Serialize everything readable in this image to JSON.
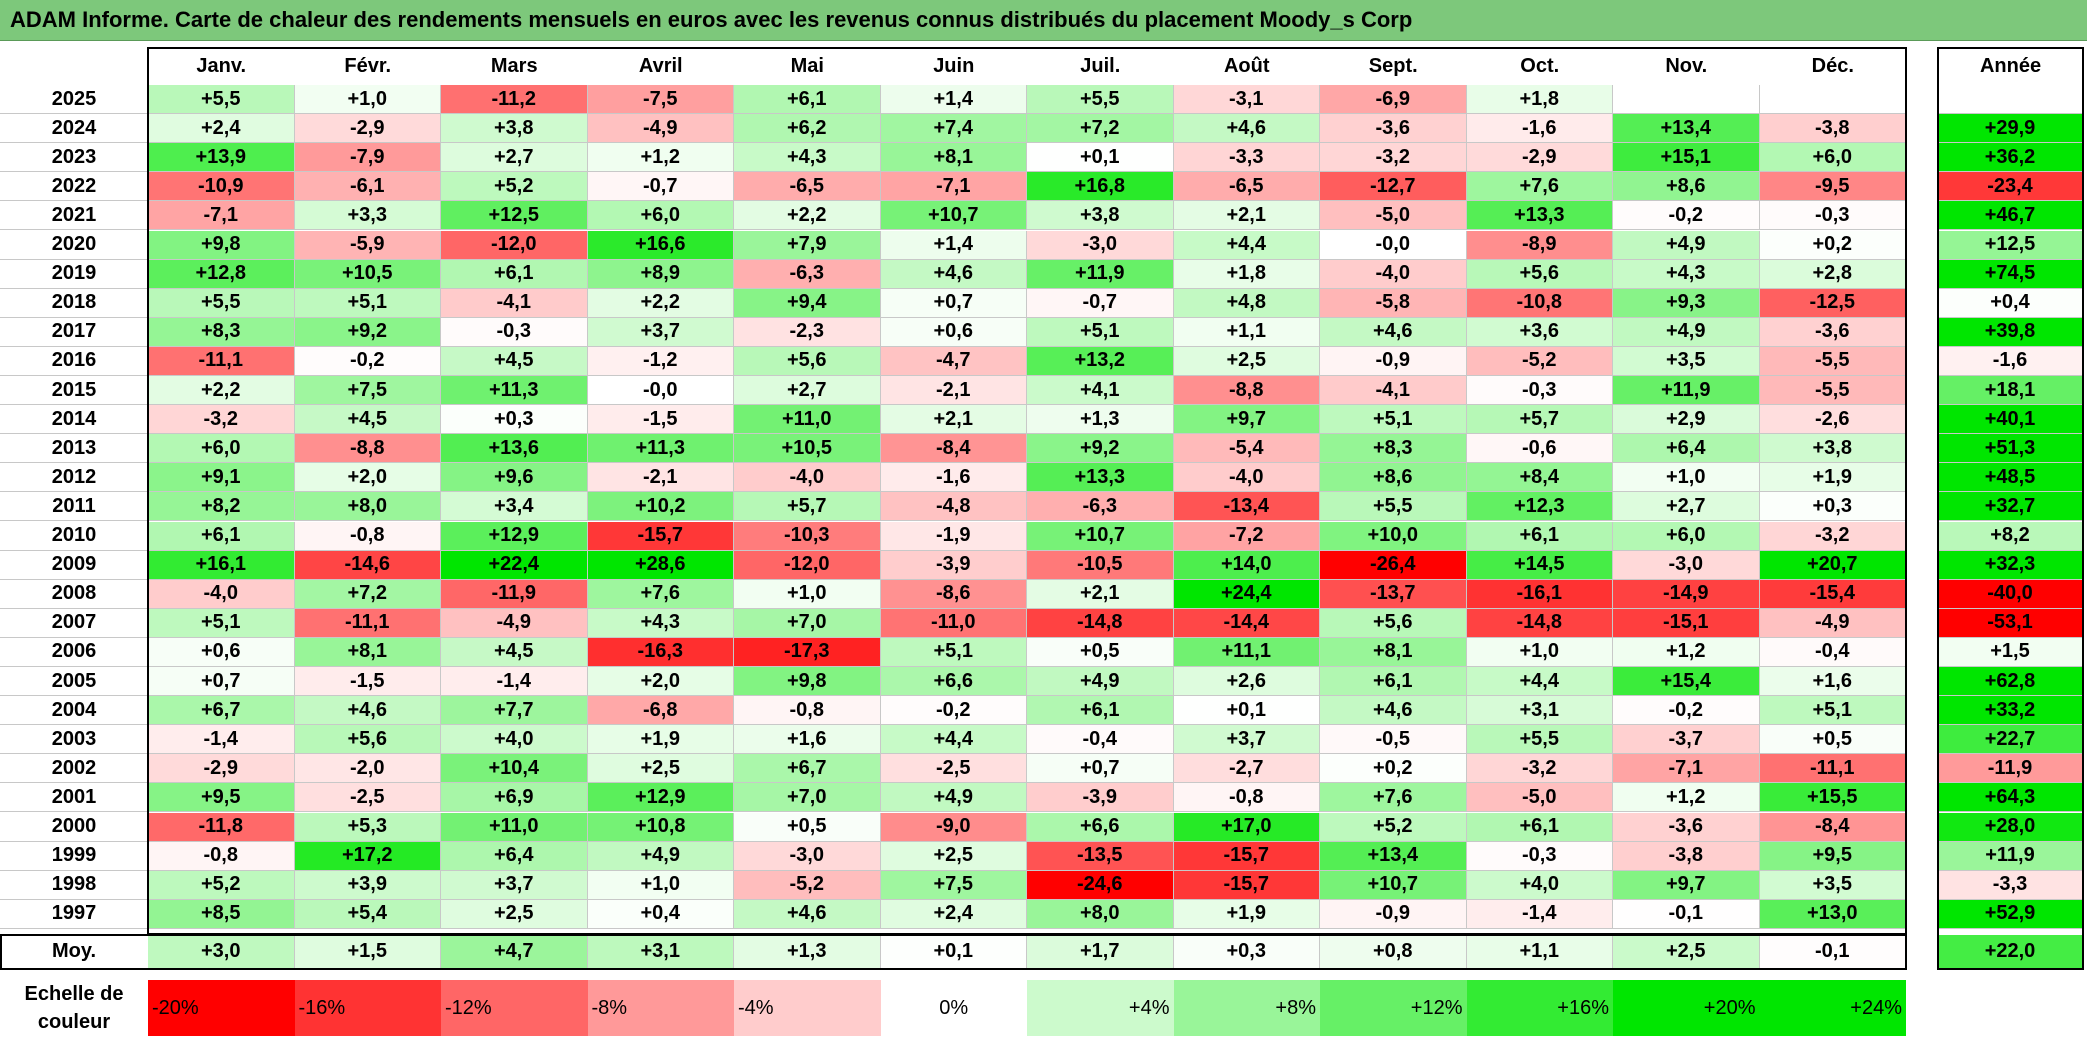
{
  "title": "ADAM Informe. Carte de chaleur des rendements mensuels en euros avec les revenus connus distribués du placement Moody_s Corp",
  "chart_data": {
    "type": "heatmap",
    "title": "ADAM Informe. Carte de chaleur des rendements mensuels en euros avec les revenus connus distribués du placement Moody_s Corp",
    "months": [
      "Janv.",
      "Févr.",
      "Mars",
      "Avril",
      "Mai",
      "Juin",
      "Juil.",
      "Août",
      "Sept.",
      "Oct.",
      "Nov.",
      "Déc."
    ],
    "year_header": "Année",
    "rows": [
      {
        "year": "2025",
        "values": [
          "+5,5",
          "+1,0",
          "-11,2",
          "-7,5",
          "+6,1",
          "+1,4",
          "+5,5",
          "-3,1",
          "-6,9",
          "+1,8",
          "",
          ""
        ],
        "annual": ""
      },
      {
        "year": "2024",
        "values": [
          "+2,4",
          "-2,9",
          "+3,8",
          "-4,9",
          "+6,2",
          "+7,4",
          "+7,2",
          "+4,6",
          "-3,6",
          "-1,6",
          "+13,4",
          "-3,8"
        ],
        "annual": "+29,9"
      },
      {
        "year": "2023",
        "values": [
          "+13,9",
          "-7,9",
          "+2,7",
          "+1,2",
          "+4,3",
          "+8,1",
          "+0,1",
          "-3,3",
          "-3,2",
          "-2,9",
          "+15,1",
          "+6,0"
        ],
        "annual": "+36,2"
      },
      {
        "year": "2022",
        "values": [
          "-10,9",
          "-6,1",
          "+5,2",
          "-0,7",
          "-6,5",
          "-7,1",
          "+16,8",
          "-6,5",
          "-12,7",
          "+7,6",
          "+8,6",
          "-9,5"
        ],
        "annual": "-23,4"
      },
      {
        "year": "2021",
        "values": [
          "-7,1",
          "+3,3",
          "+12,5",
          "+6,0",
          "+2,2",
          "+10,7",
          "+3,8",
          "+2,1",
          "-5,0",
          "+13,3",
          "-0,2",
          "-0,3"
        ],
        "annual": "+46,7"
      },
      {
        "year": "2020",
        "values": [
          "+9,8",
          "-5,9",
          "-12,0",
          "+16,6",
          "+7,9",
          "+1,4",
          "-3,0",
          "+4,4",
          "-0,0",
          "-8,9",
          "+4,9",
          "+0,2"
        ],
        "annual": "+12,5"
      },
      {
        "year": "2019",
        "values": [
          "+12,8",
          "+10,5",
          "+6,1",
          "+8,9",
          "-6,3",
          "+4,6",
          "+11,9",
          "+1,8",
          "-4,0",
          "+5,6",
          "+4,3",
          "+2,8"
        ],
        "annual": "+74,5"
      },
      {
        "year": "2018",
        "values": [
          "+5,5",
          "+5,1",
          "-4,1",
          "+2,2",
          "+9,4",
          "+0,7",
          "-0,7",
          "+4,8",
          "-5,8",
          "-10,8",
          "+9,3",
          "-12,5"
        ],
        "annual": "+0,4"
      },
      {
        "year": "2017",
        "values": [
          "+8,3",
          "+9,2",
          "-0,3",
          "+3,7",
          "-2,3",
          "+0,6",
          "+5,1",
          "+1,1",
          "+4,6",
          "+3,6",
          "+4,9",
          "-3,6"
        ],
        "annual": "+39,8"
      },
      {
        "year": "2016",
        "values": [
          "-11,1",
          "-0,2",
          "+4,5",
          "-1,2",
          "+5,6",
          "-4,7",
          "+13,2",
          "+2,5",
          "-0,9",
          "-5,2",
          "+3,5",
          "-5,5"
        ],
        "annual": "-1,6"
      },
      {
        "year": "2015",
        "values": [
          "+2,2",
          "+7,5",
          "+11,3",
          "-0,0",
          "+2,7",
          "-2,1",
          "+4,1",
          "-8,8",
          "-4,1",
          "-0,3",
          "+11,9",
          "-5,5"
        ],
        "annual": "+18,1"
      },
      {
        "year": "2014",
        "values": [
          "-3,2",
          "+4,5",
          "+0,3",
          "-1,5",
          "+11,0",
          "+2,1",
          "+1,3",
          "+9,7",
          "+5,1",
          "+5,7",
          "+2,9",
          "-2,6"
        ],
        "annual": "+40,1"
      },
      {
        "year": "2013",
        "values": [
          "+6,0",
          "-8,8",
          "+13,6",
          "+11,3",
          "+10,5",
          "-8,4",
          "+9,2",
          "-5,4",
          "+8,3",
          "-0,6",
          "+6,4",
          "+3,8"
        ],
        "annual": "+51,3"
      },
      {
        "year": "2012",
        "values": [
          "+9,1",
          "+2,0",
          "+9,6",
          "-2,1",
          "-4,0",
          "-1,6",
          "+13,3",
          "-4,0",
          "+8,6",
          "+8,4",
          "+1,0",
          "+1,9"
        ],
        "annual": "+48,5"
      },
      {
        "year": "2011",
        "values": [
          "+8,2",
          "+8,0",
          "+3,4",
          "+10,2",
          "+5,7",
          "-4,8",
          "-6,3",
          "-13,4",
          "+5,5",
          "+12,3",
          "+2,7",
          "+0,3"
        ],
        "annual": "+32,7"
      },
      {
        "year": "2010",
        "values": [
          "+6,1",
          "-0,8",
          "+12,9",
          "-15,7",
          "-10,3",
          "-1,9",
          "+10,7",
          "-7,2",
          "+10,0",
          "+6,1",
          "+6,0",
          "-3,2"
        ],
        "annual": "+8,2"
      },
      {
        "year": "2009",
        "values": [
          "+16,1",
          "-14,6",
          "+22,4",
          "+28,6",
          "-12,0",
          "-3,9",
          "-10,5",
          "+14,0",
          "-26,4",
          "+14,5",
          "-3,0",
          "+20,7"
        ],
        "annual": "+32,3"
      },
      {
        "year": "2008",
        "values": [
          "-4,0",
          "+7,2",
          "-11,9",
          "+7,6",
          "+1,0",
          "-8,6",
          "+2,1",
          "+24,4",
          "-13,7",
          "-16,1",
          "-14,9",
          "-15,4"
        ],
        "annual": "-40,0"
      },
      {
        "year": "2007",
        "values": [
          "+5,1",
          "-11,1",
          "-4,9",
          "+4,3",
          "+7,0",
          "-11,0",
          "-14,8",
          "-14,4",
          "+5,6",
          "-14,8",
          "-15,1",
          "-4,9"
        ],
        "annual": "-53,1"
      },
      {
        "year": "2006",
        "values": [
          "+0,6",
          "+8,1",
          "+4,5",
          "-16,3",
          "-17,3",
          "+5,1",
          "+0,5",
          "+11,1",
          "+8,1",
          "+1,0",
          "+1,2",
          "-0,4"
        ],
        "annual": "+1,5"
      },
      {
        "year": "2005",
        "values": [
          "+0,7",
          "-1,5",
          "-1,4",
          "+2,0",
          "+9,8",
          "+6,6",
          "+4,9",
          "+2,6",
          "+6,1",
          "+4,4",
          "+15,4",
          "+1,6"
        ],
        "annual": "+62,8"
      },
      {
        "year": "2004",
        "values": [
          "+6,7",
          "+4,6",
          "+7,7",
          "-6,8",
          "-0,8",
          "-0,2",
          "+6,1",
          "+0,1",
          "+4,6",
          "+3,1",
          "-0,2",
          "+5,1"
        ],
        "annual": "+33,2"
      },
      {
        "year": "2003",
        "values": [
          "-1,4",
          "+5,6",
          "+4,0",
          "+1,9",
          "+1,6",
          "+4,4",
          "-0,4",
          "+3,7",
          "-0,5",
          "+5,5",
          "-3,7",
          "+0,5"
        ],
        "annual": "+22,7"
      },
      {
        "year": "2002",
        "values": [
          "-2,9",
          "-2,0",
          "+10,4",
          "+2,5",
          "+6,7",
          "-2,5",
          "+0,7",
          "-2,7",
          "+0,2",
          "-3,2",
          "-7,1",
          "-11,1"
        ],
        "annual": "-11,9"
      },
      {
        "year": "2001",
        "values": [
          "+9,5",
          "-2,5",
          "+6,9",
          "+12,9",
          "+7,0",
          "+4,9",
          "-3,9",
          "-0,8",
          "+7,6",
          "-5,0",
          "+1,2",
          "+15,5"
        ],
        "annual": "+64,3"
      },
      {
        "year": "2000",
        "values": [
          "-11,8",
          "+5,3",
          "+11,0",
          "+10,8",
          "+0,5",
          "-9,0",
          "+6,6",
          "+17,0",
          "+5,2",
          "+6,1",
          "-3,6",
          "-8,4"
        ],
        "annual": "+28,0"
      },
      {
        "year": "1999",
        "values": [
          "-0,8",
          "+17,2",
          "+6,4",
          "+4,9",
          "-3,0",
          "+2,5",
          "-13,5",
          "-15,7",
          "+13,4",
          "-0,3",
          "-3,8",
          "+9,5"
        ],
        "annual": "+11,9"
      },
      {
        "year": "1998",
        "values": [
          "+5,2",
          "+3,9",
          "+3,7",
          "+1,0",
          "-5,2",
          "+7,5",
          "-24,6",
          "-15,7",
          "+10,7",
          "+4,0",
          "+9,7",
          "+3,5"
        ],
        "annual": "-3,3"
      },
      {
        "year": "1997",
        "values": [
          "+8,5",
          "+5,4",
          "+2,5",
          "+0,4",
          "+4,6",
          "+2,4",
          "+8,0",
          "+1,9",
          "-0,9",
          "-1,4",
          "-0,1",
          "+13,0"
        ],
        "annual": "+52,9"
      }
    ],
    "average": {
      "label": "Moy.",
      "values": [
        "+3,0",
        "+1,5",
        "+4,7",
        "+3,1",
        "+1,3",
        "+0,1",
        "+1,7",
        "+0,3",
        "+0,8",
        "+1,1",
        "+2,5",
        "-0,1"
      ],
      "annual": "+22,0"
    },
    "scale": {
      "label_line1": "Echelle de",
      "label_line2": "couleur",
      "steps": [
        {
          "label": "-20%",
          "value": -20
        },
        {
          "label": "-16%",
          "value": -16
        },
        {
          "label": "-12%",
          "value": -12
        },
        {
          "label": "-8%",
          "value": -8
        },
        {
          "label": "-4%",
          "value": -4
        },
        {
          "label": "0%",
          "value": 0
        },
        {
          "label": "+4%",
          "value": 4
        },
        {
          "label": "+8%",
          "value": 8
        },
        {
          "label": "+12%",
          "value": 12
        },
        {
          "label": "+16%",
          "value": 16
        },
        {
          "label": "+20%",
          "value": 20
        },
        {
          "label": "+24%",
          "value": 24
        }
      ]
    },
    "colors": {
      "negative_max": "#ff0000",
      "neutral": "#ffffff",
      "positive_max": "#00e600",
      "title_bar": "#7dc87b"
    }
  }
}
